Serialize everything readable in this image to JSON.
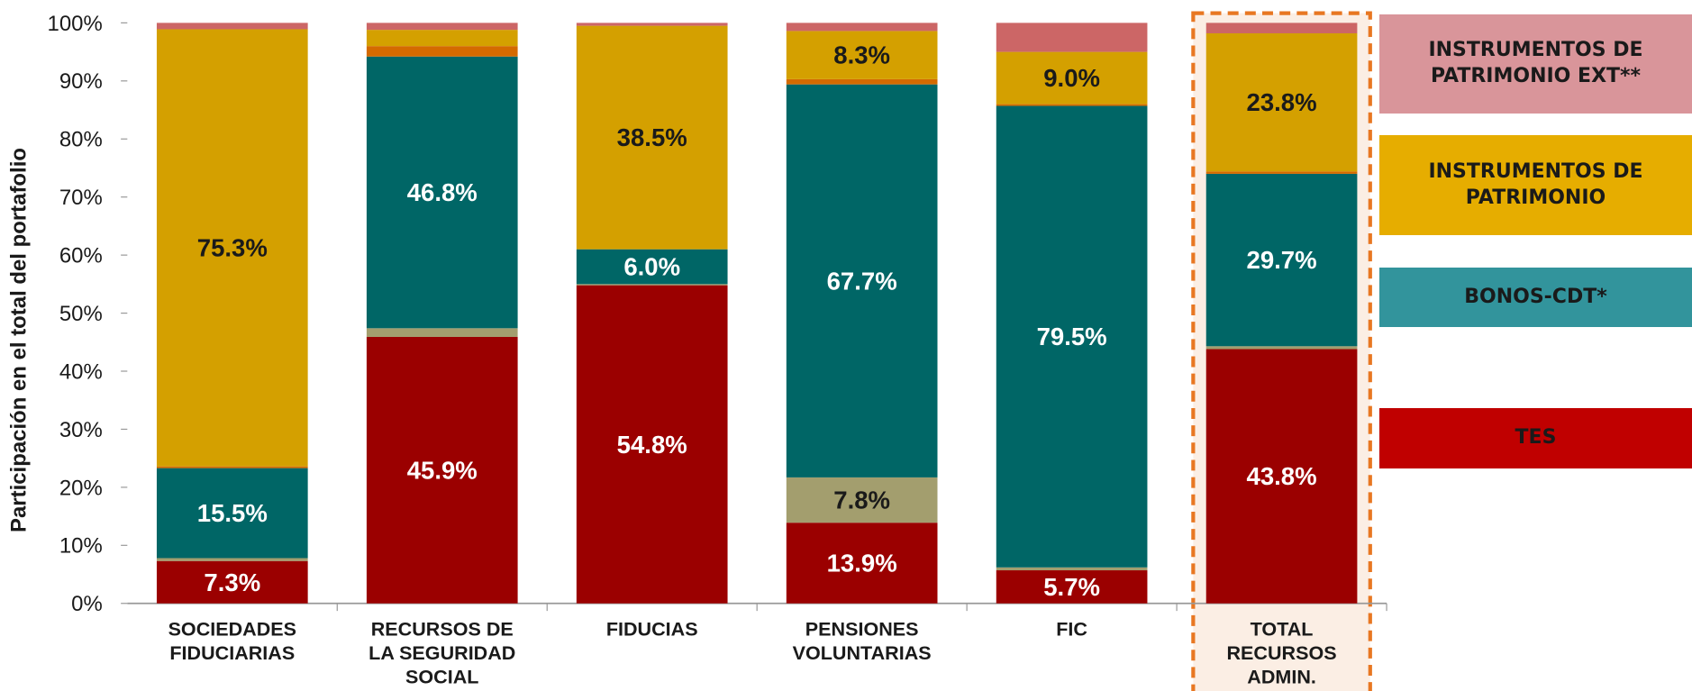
{
  "chart_data": {
    "type": "stacked_bar",
    "y_label": "Participación en el total del portafolio",
    "categories": [
      [
        "SOCIEDADES",
        "FIDUCIARIAS"
      ],
      [
        "RECURSOS DE",
        "LA SEGURIDAD",
        "SOCIAL"
      ],
      [
        "FIDUCIAS"
      ],
      [
        "PENSIONES",
        "VOLUNTARIAS"
      ],
      [
        "FIC"
      ],
      [
        "TOTAL",
        "RECURSOS",
        "ADMIN."
      ]
    ],
    "highlight_category": 5,
    "ylim": [
      0,
      100
    ],
    "yticks": [
      {
        "value": 0,
        "label": "0%"
      },
      {
        "value": 10,
        "label": "10%"
      },
      {
        "value": 20,
        "label": "20%"
      },
      {
        "value": 30,
        "label": "30%"
      },
      {
        "value": 40,
        "label": "40%"
      },
      {
        "value": 50,
        "label": "50%"
      },
      {
        "value": 60,
        "label": "60%"
      },
      {
        "value": 70,
        "label": "70%"
      },
      {
        "value": 80,
        "label": "80%"
      },
      {
        "value": 90,
        "label": "90%"
      },
      {
        "value": 100,
        "label": "100%"
      }
    ],
    "series": [
      {
        "name": "TES",
        "color": "#9b0000",
        "legend_color": "#c00000",
        "values": [
          7.3,
          45.9,
          54.8,
          13.9,
          5.7,
          43.8
        ],
        "value_labels": [
          "7.3%",
          "45.9%",
          "54.8%",
          "13.9%",
          "5.7%",
          "43.8%"
        ]
      },
      {
        "color": "#a39e6e",
        "values": [
          0.5,
          1.5,
          0.2,
          7.8,
          0.5,
          0.5
        ],
        "value_labels": [
          null,
          null,
          null,
          "7.8%",
          null,
          null
        ]
      },
      {
        "name": "BONOS-CDT*",
        "color": "#006666",
        "legend_color": "#32949c",
        "values": [
          15.5,
          46.8,
          6.0,
          67.7,
          79.5,
          29.7
        ],
        "value_labels": [
          "15.5%",
          "46.8%",
          "6.0%",
          "67.7%",
          "79.5%",
          "29.7%"
        ]
      },
      {
        "color": "#d46a00",
        "values": [
          0.3,
          1.8,
          0.0,
          0.9,
          0.3,
          0.4
        ],
        "value_labels": [
          null,
          null,
          null,
          null,
          null,
          null
        ]
      },
      {
        "name": "INSTRUMENTOS DE PATRIMONIO",
        "color": "#d4a000",
        "legend_color": "#e6ad00",
        "values": [
          75.3,
          2.8,
          38.5,
          8.3,
          9.0,
          23.8
        ],
        "value_labels": [
          "75.3%",
          null,
          "38.5%",
          "8.3%",
          "9.0%",
          "23.8%"
        ]
      },
      {
        "name": "INSTRUMENTOS DE PATRIMONIO EXT**",
        "color": "#cc6666",
        "legend_color": "#d9959a",
        "values": [
          1.1,
          1.2,
          0.5,
          1.4,
          5.0,
          1.8
        ],
        "value_labels": [
          null,
          null,
          null,
          null,
          null,
          null
        ]
      }
    ]
  }
}
